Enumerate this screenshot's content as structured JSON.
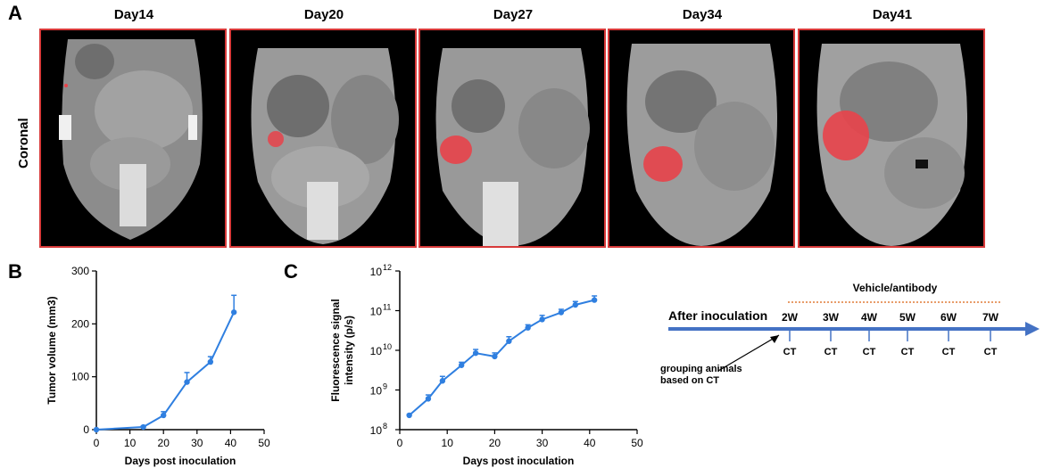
{
  "panel_a": {
    "letter": "A",
    "row_label": "Coronal",
    "days": [
      "Day14",
      "Day20",
      "Day27",
      "Day34",
      "Day41"
    ]
  },
  "panel_b": {
    "letter": "B"
  },
  "panel_c": {
    "letter": "C"
  },
  "colors": {
    "line": "#2f7fe0",
    "tumor": "#e8424a",
    "scan_border": "#d83a3a",
    "timeline": "#4472c4",
    "dotted": "#e07b39"
  },
  "chart_data": [
    {
      "type": "line",
      "id": "B",
      "xlabel": "Days post inoculation",
      "ylabel": "Tumor volume (mm3)",
      "xlim": [
        0,
        50
      ],
      "ylim": [
        0,
        300
      ],
      "xticks": [
        0,
        10,
        20,
        30,
        40,
        50
      ],
      "yticks": [
        0,
        100,
        200,
        300
      ],
      "x": [
        0,
        14,
        20,
        27,
        34,
        41
      ],
      "y": [
        0,
        5,
        27,
        90,
        128,
        222
      ],
      "err": [
        0,
        2,
        7,
        18,
        10,
        32
      ]
    },
    {
      "type": "line",
      "id": "C",
      "scale": "log",
      "xlabel": "Days post inoculation",
      "ylabel_line1": "Fluorescence signal",
      "ylabel_line2": "intensity (p/s)",
      "xlim": [
        0,
        50
      ],
      "ylim": [
        100000000,
        1000000000000
      ],
      "xticks": [
        0,
        10,
        20,
        30,
        40,
        50
      ],
      "ytick_labels": [
        [
          "10",
          "8"
        ],
        [
          "10",
          "9"
        ],
        [
          "10",
          "10"
        ],
        [
          "10",
          "11"
        ],
        [
          "10",
          "12"
        ]
      ],
      "x": [
        2,
        6,
        9,
        13,
        16,
        20,
        23,
        27,
        30,
        34,
        37,
        41
      ],
      "y": [
        230000000,
        600000000,
        1700000000,
        4200000000,
        8500000000,
        7000000000,
        17000000000,
        37000000000,
        60000000000,
        90000000000,
        140000000000,
        185000000000
      ],
      "err_up": [
        240000000,
        750000000,
        2200000000,
        5000000000,
        10500000000,
        8600000000,
        22000000000,
        44000000000,
        76000000000,
        108000000000,
        170000000000,
        235000000000
      ]
    }
  ],
  "timeline": {
    "title": "After inoculation",
    "treatment": "Vehicle/antibody",
    "weeks": [
      "2W",
      "3W",
      "4W",
      "5W",
      "6W",
      "7W"
    ],
    "markers": [
      "CT",
      "CT",
      "CT",
      "CT",
      "CT",
      "CT"
    ],
    "note_line1": "grouping animals",
    "note_line2": "based on CT"
  }
}
